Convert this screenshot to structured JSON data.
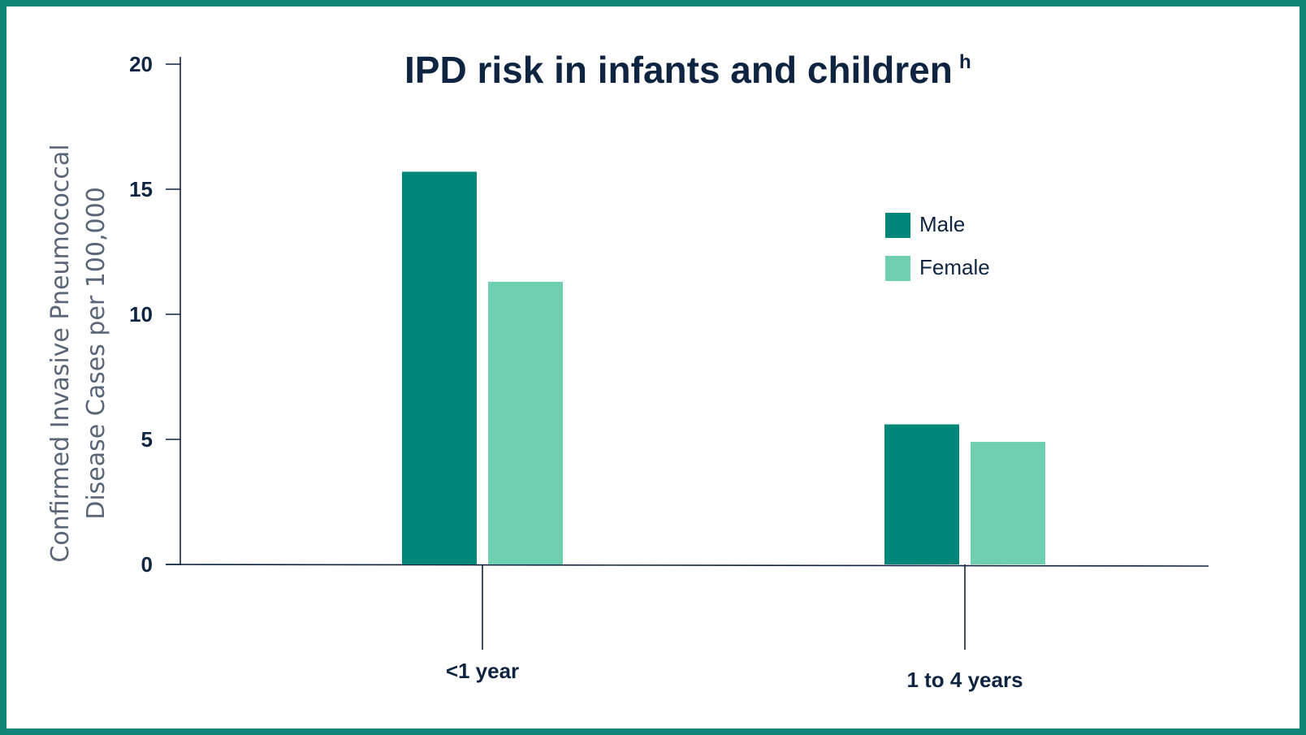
{
  "chart_data": {
    "type": "bar",
    "title": "IPD risk in infants and children",
    "title_superscript": "h",
    "ylabel": [
      "Confirmed Invasive Pneumococcal",
      "Disease Cases per 100,000"
    ],
    "xlabel": "",
    "ylim": [
      0,
      20
    ],
    "yticks": [
      "0",
      "5",
      "10",
      "15",
      "20"
    ],
    "categories": [
      "<1 year",
      "1 to 4 years"
    ],
    "series": [
      {
        "name": "Male",
        "color": "#00877a",
        "values": [
          15.7,
          5.6
        ]
      },
      {
        "name": "Female",
        "color": "#6fcfb1",
        "values": [
          11.3,
          4.9
        ]
      }
    ],
    "legend_position": "right",
    "grid": false
  }
}
